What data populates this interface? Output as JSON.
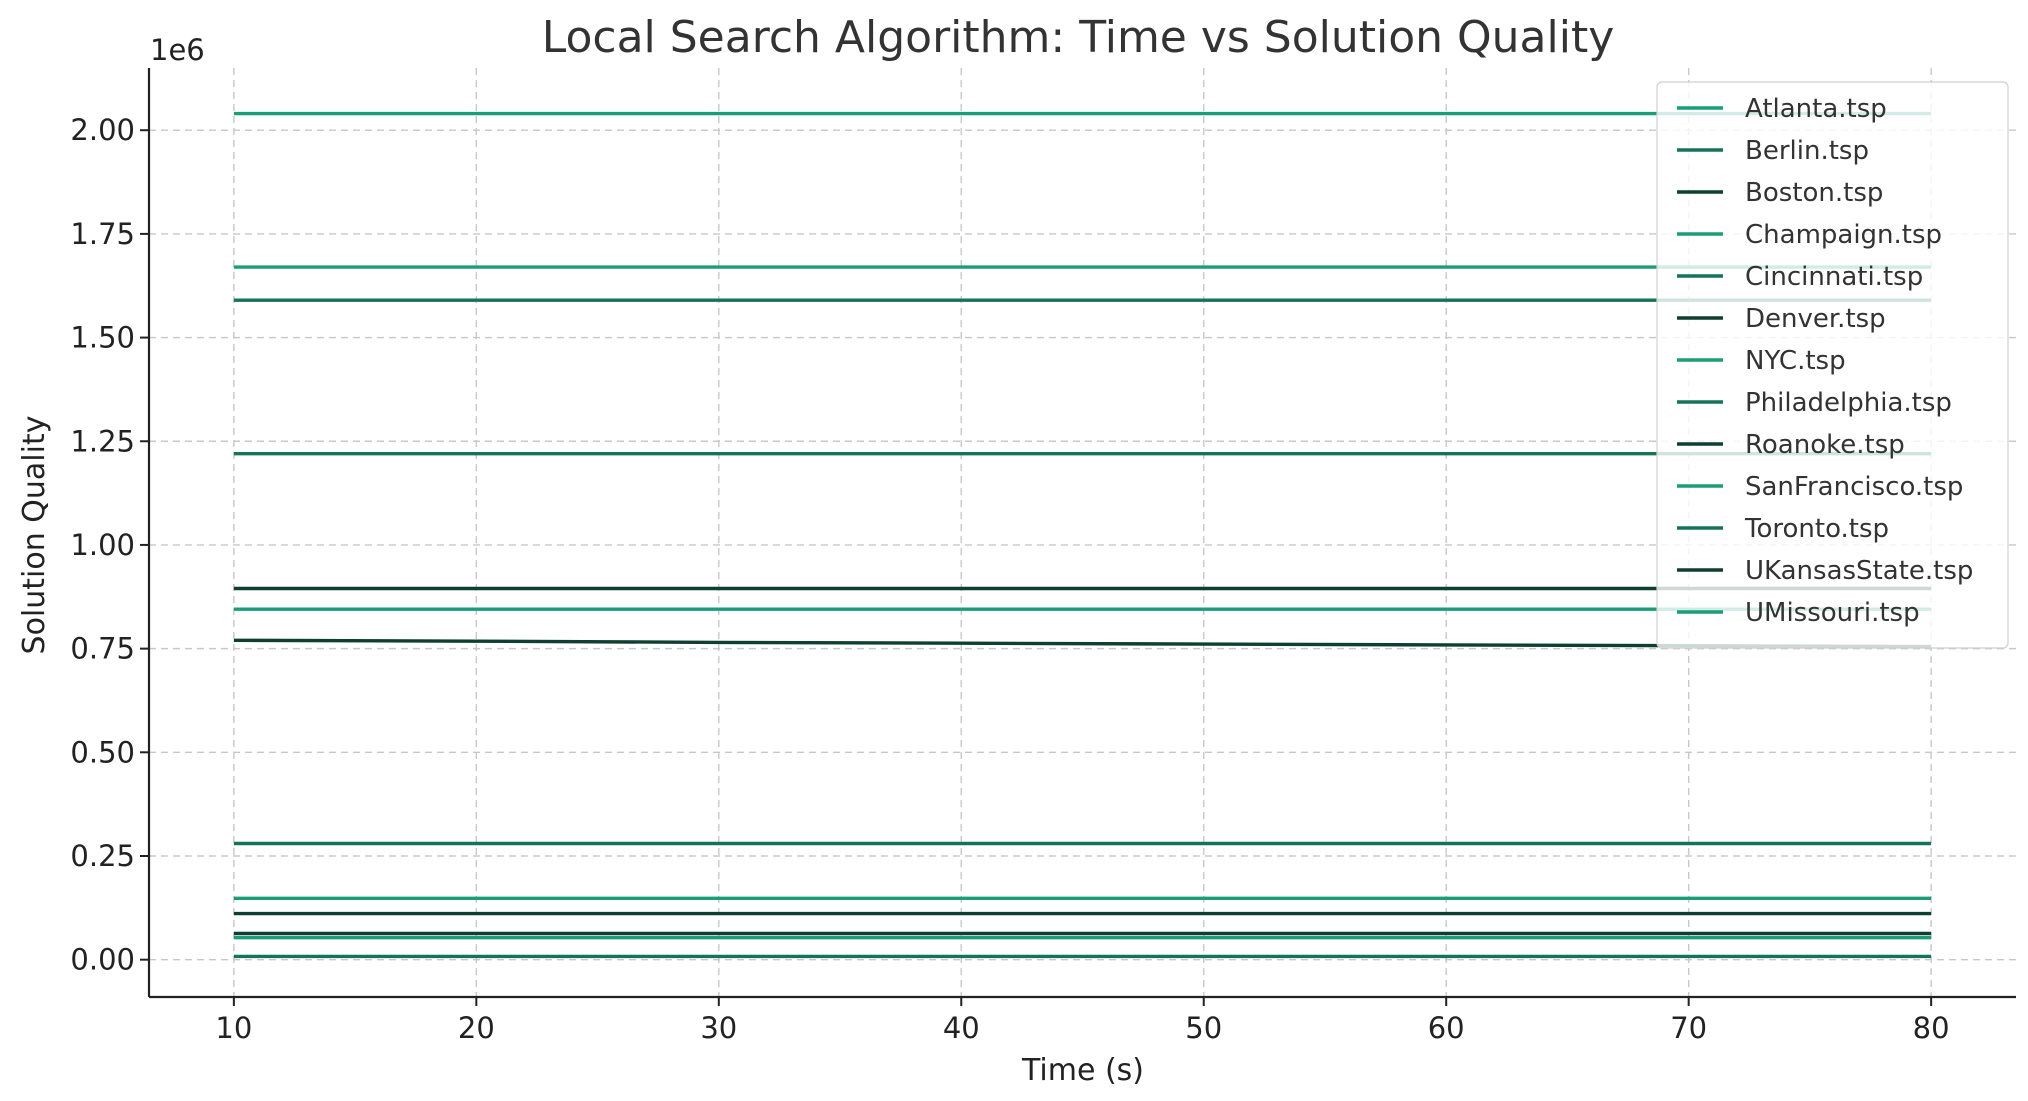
{
  "chart_data": {
    "type": "line",
    "title": "Local Search Algorithm: Time vs Solution Quality",
    "xlabel": "Time (s)",
    "ylabel": "Solution Quality",
    "y_offset_label": "1e6",
    "xlim": [
      6.5,
      83.5
    ],
    "ylim": [
      -0.09,
      2.15
    ],
    "x_ticks": [
      10,
      20,
      30,
      40,
      50,
      60,
      70,
      80
    ],
    "x_tick_labels": [
      "10",
      "20",
      "30",
      "40",
      "50",
      "60",
      "70",
      "80"
    ],
    "y_ticks": [
      0.0,
      0.25,
      0.5,
      0.75,
      1.0,
      1.25,
      1.5,
      1.75,
      2.0
    ],
    "y_tick_labels": [
      "0.00",
      "0.25",
      "0.50",
      "0.75",
      "1.00",
      "1.25",
      "1.50",
      "1.75",
      "2.00"
    ],
    "grid": true,
    "legend_position": "top-right",
    "x": [
      10,
      20,
      30,
      40,
      50,
      60,
      70,
      80
    ],
    "series": [
      {
        "name": "Atlanta.tsp",
        "color": "#1b9e77",
        "values": [
          2.04,
          2.04,
          2.04,
          2.04,
          2.04,
          2.04,
          2.04,
          2.04
        ]
      },
      {
        "name": "Berlin.tsp",
        "color": "#16735a",
        "values": [
          0.008,
          0.008,
          0.008,
          0.008,
          0.008,
          0.008,
          0.008,
          0.008
        ]
      },
      {
        "name": "Boston.tsp",
        "color": "#0e3f30",
        "values": [
          0.895,
          0.895,
          0.895,
          0.895,
          0.895,
          0.895,
          0.895,
          0.895
        ]
      },
      {
        "name": "Champaign.tsp",
        "color": "#1b9e77",
        "values": [
          0.053,
          0.053,
          0.053,
          0.053,
          0.053,
          0.053,
          0.053,
          0.053
        ]
      },
      {
        "name": "Cincinnati.tsp",
        "color": "#16735a",
        "values": [
          0.28,
          0.28,
          0.28,
          0.28,
          0.28,
          0.28,
          0.28,
          0.28
        ]
      },
      {
        "name": "Denver.tsp",
        "color": "#0e3f30",
        "values": [
          0.111,
          0.111,
          0.111,
          0.111,
          0.111,
          0.111,
          0.111,
          0.111
        ]
      },
      {
        "name": "NYC.tsp",
        "color": "#1b9e77",
        "values": [
          1.67,
          1.67,
          1.67,
          1.67,
          1.67,
          1.67,
          1.67,
          1.67
        ]
      },
      {
        "name": "Philadelphia.tsp",
        "color": "#16735a",
        "values": [
          1.59,
          1.59,
          1.59,
          1.59,
          1.59,
          1.59,
          1.59,
          1.59
        ]
      },
      {
        "name": "Roanoke.tsp",
        "color": "#0e3f30",
        "values": [
          0.77,
          0.768,
          0.765,
          0.763,
          0.761,
          0.759,
          0.757,
          0.755
        ]
      },
      {
        "name": "SanFrancisco.tsp",
        "color": "#1b9e77",
        "values": [
          0.845,
          0.845,
          0.845,
          0.845,
          0.845,
          0.845,
          0.845,
          0.845
        ]
      },
      {
        "name": "Toronto.tsp",
        "color": "#16735a",
        "values": [
          1.22,
          1.22,
          1.22,
          1.22,
          1.22,
          1.22,
          1.22,
          1.22
        ]
      },
      {
        "name": "UKansasState.tsp",
        "color": "#0e3f30",
        "values": [
          0.063,
          0.063,
          0.063,
          0.063,
          0.063,
          0.063,
          0.063,
          0.063
        ]
      },
      {
        "name": "UMissouri.tsp",
        "color": "#1b9e77",
        "values": [
          0.148,
          0.148,
          0.148,
          0.148,
          0.148,
          0.148,
          0.148,
          0.148
        ]
      }
    ]
  }
}
